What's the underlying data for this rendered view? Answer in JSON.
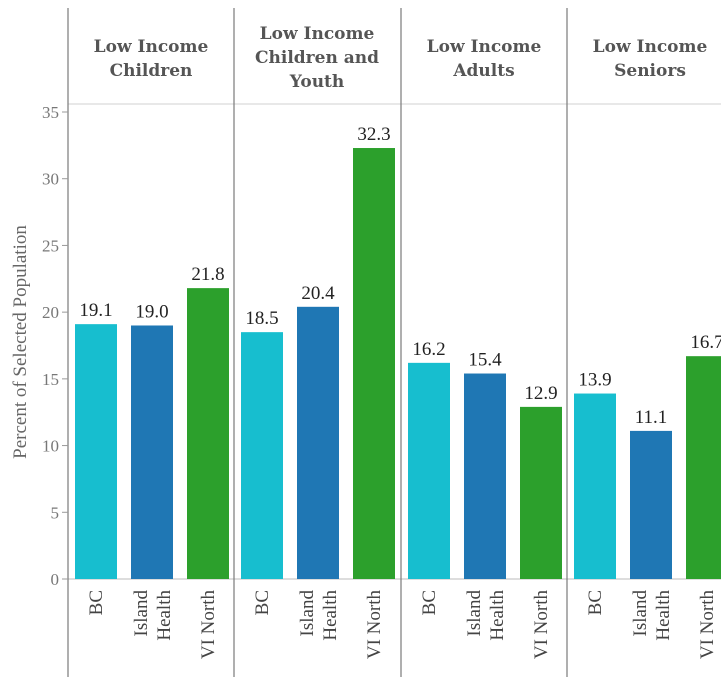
{
  "chart_data": {
    "type": "bar",
    "ylabel": "Percent of Selected Population",
    "ylim": [
      0,
      35
    ],
    "yticks": [
      0,
      5,
      10,
      15,
      20,
      25,
      30,
      35
    ],
    "categories": [
      [
        "BC"
      ],
      [
        "Island",
        "Health"
      ],
      [
        "VI North"
      ]
    ],
    "series_colors": [
      "#17becf",
      "#1f77b4",
      "#2ca02c"
    ],
    "panels": [
      {
        "title": [
          "Low Income",
          "Children"
        ],
        "values": [
          19.1,
          19.0,
          21.8
        ],
        "labels": [
          "19.1",
          "19.0",
          "21.8"
        ]
      },
      {
        "title": [
          "Low Income",
          "Children and",
          "Youth"
        ],
        "values": [
          18.5,
          20.4,
          32.3
        ],
        "labels": [
          "18.5",
          "20.4",
          "32.3"
        ]
      },
      {
        "title": [
          "Low Income",
          "Adults"
        ],
        "values": [
          16.2,
          15.4,
          12.9
        ],
        "labels": [
          "16.2",
          "15.4",
          "12.9"
        ]
      },
      {
        "title": [
          "Low Income",
          "Seniors"
        ],
        "values": [
          13.9,
          11.1,
          16.7
        ],
        "labels": [
          "13.9",
          "11.1",
          "16.7"
        ]
      }
    ],
    "grid": false
  }
}
